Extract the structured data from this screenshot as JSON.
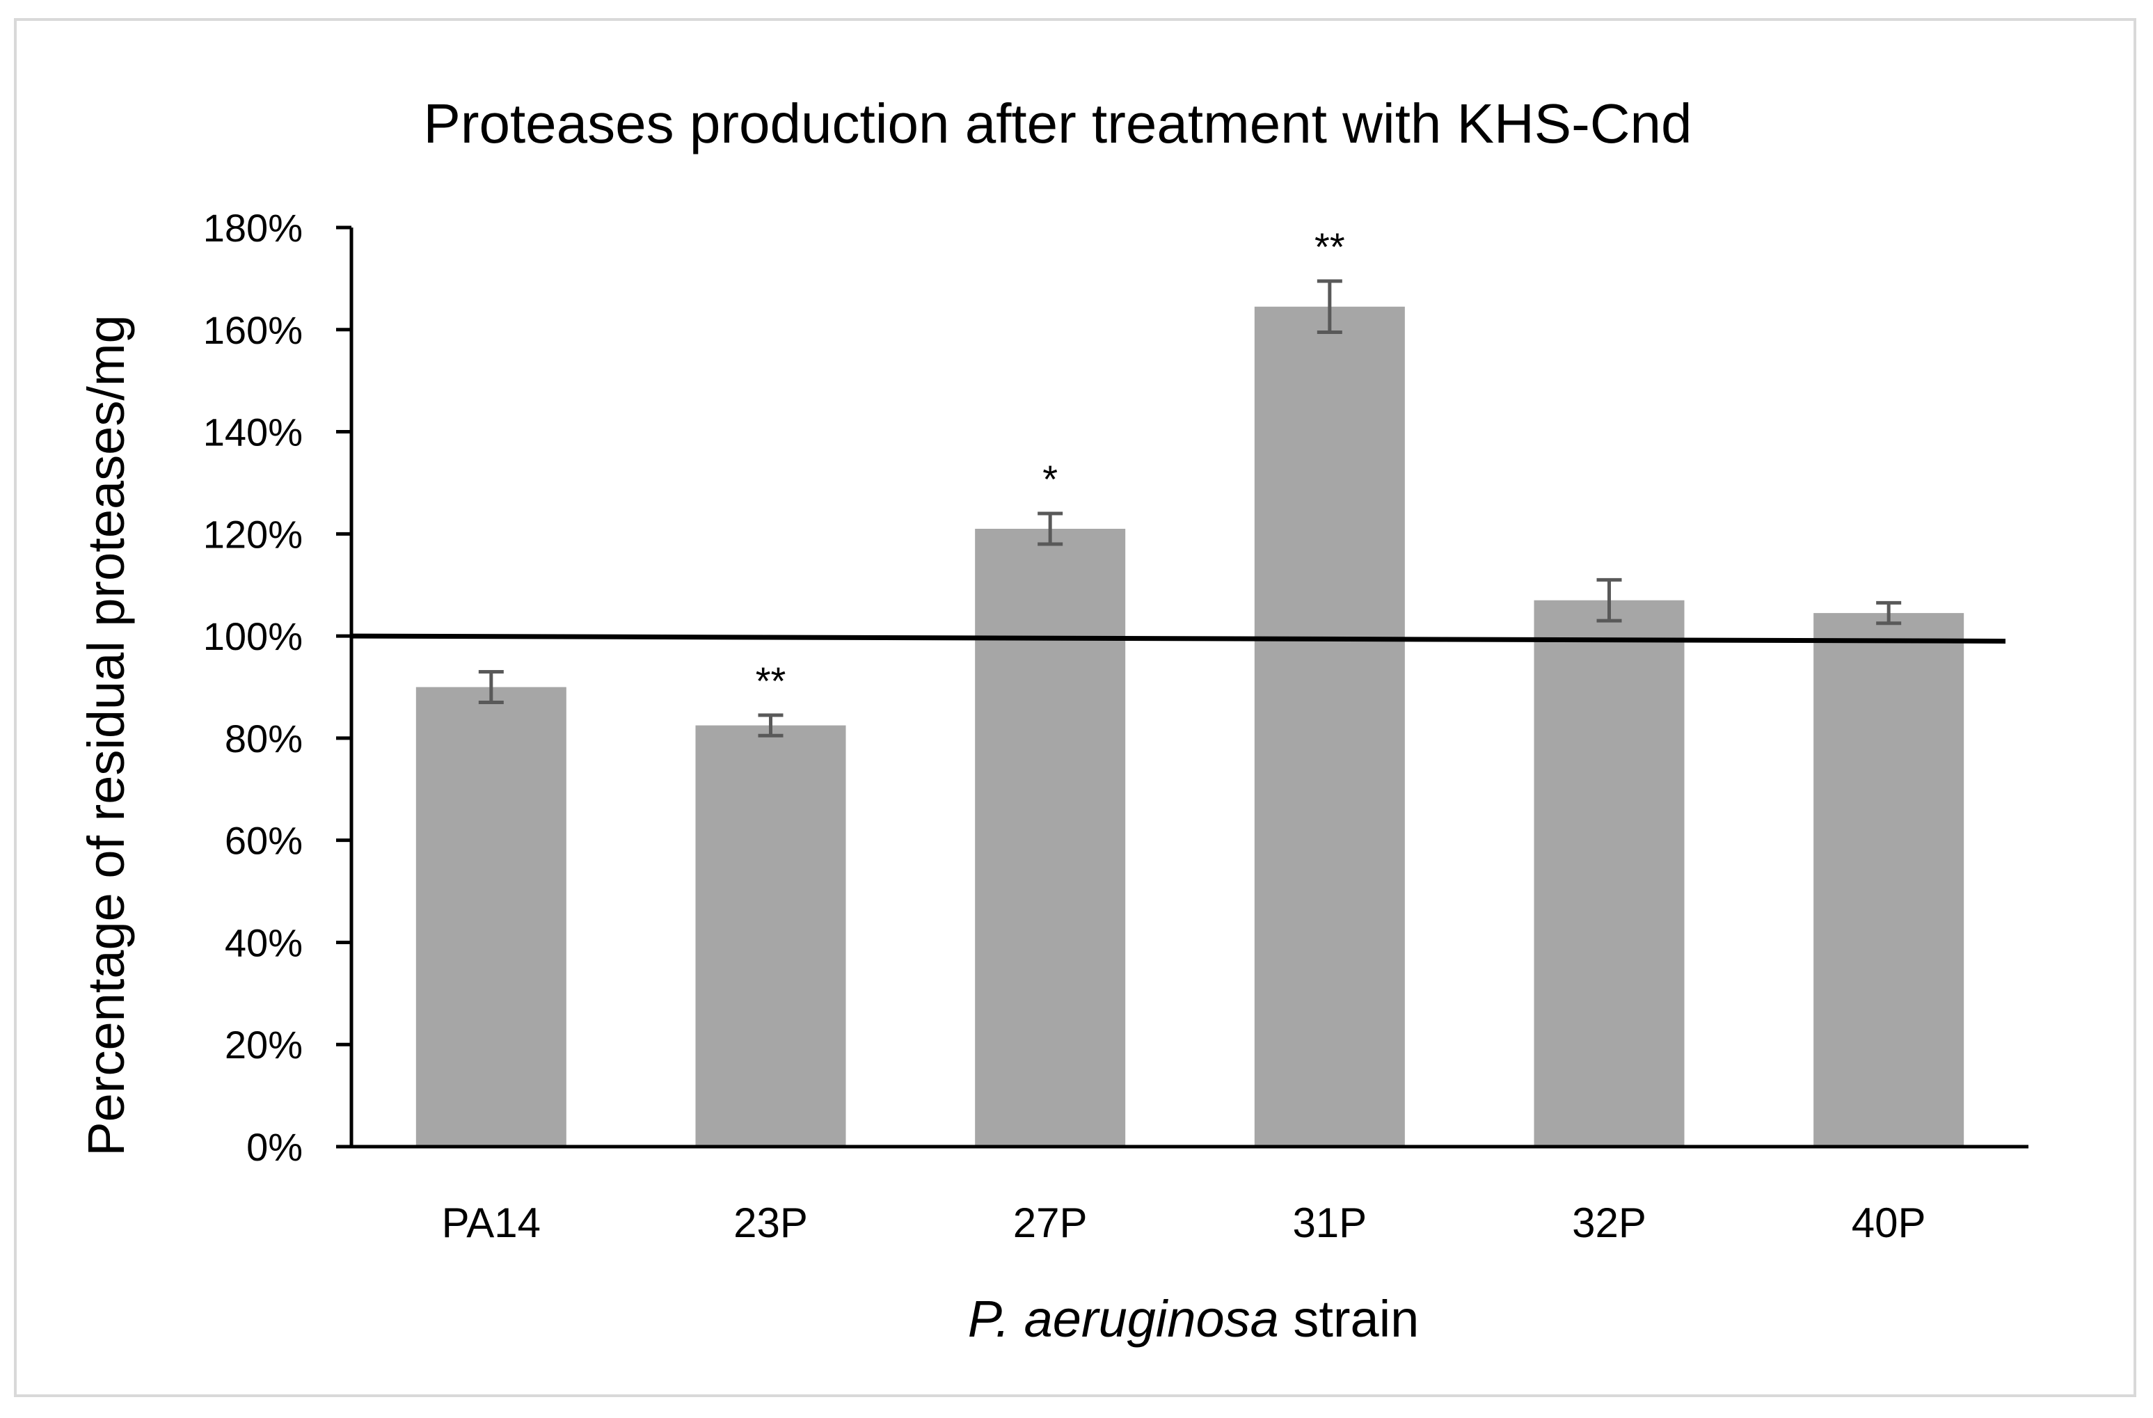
{
  "chart_data": {
    "type": "bar",
    "title": "Proteases production after treatment with KHS-Cnd",
    "xlabel_italic": "P. aeruginosa",
    "xlabel_rest": " strain",
    "ylabel": "Percentage of residual  proteases/mg",
    "categories": [
      "PA14",
      "23P",
      "27P",
      "31P",
      "32P",
      "40P"
    ],
    "values": [
      90,
      82.5,
      121,
      164.5,
      107,
      104.5
    ],
    "errors": [
      3,
      2,
      3,
      5,
      4,
      2
    ],
    "significance": [
      "",
      "**",
      "*",
      "**",
      "",
      ""
    ],
    "ylim": [
      0,
      180
    ],
    "yticks": [
      0,
      20,
      40,
      60,
      80,
      100,
      120,
      140,
      160,
      180
    ],
    "ytick_labels": [
      "0%",
      "20%",
      "40%",
      "60%",
      "80%",
      "100%",
      "120%",
      "140%",
      "160%",
      "180%"
    ],
    "reference_line": {
      "start": 100,
      "end": 99
    },
    "grid": false,
    "bar_color": "#a6a6a6",
    "error_color": "#595959"
  }
}
